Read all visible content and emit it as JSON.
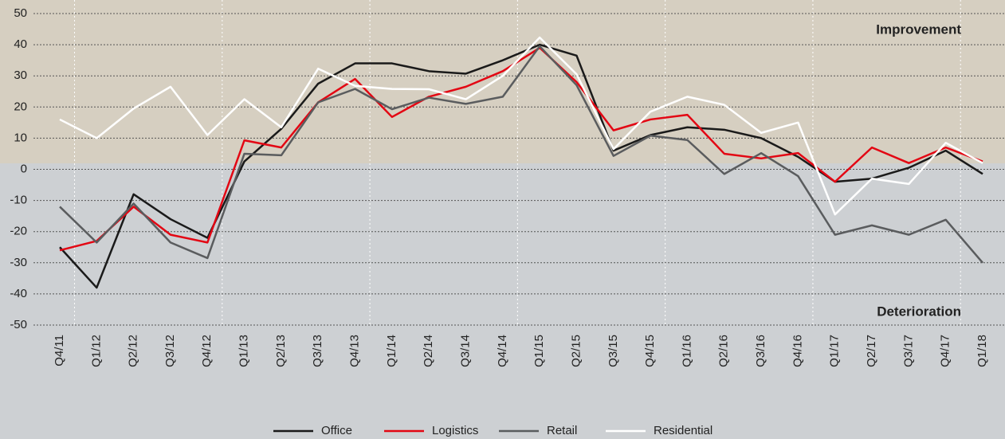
{
  "chart_data": {
    "type": "line",
    "categories": [
      "Q4/11",
      "Q1/12",
      "Q2/12",
      "Q3/12",
      "Q4/12",
      "Q1/13",
      "Q2/13",
      "Q3/13",
      "Q4/13",
      "Q1/14",
      "Q2/14",
      "Q3/14",
      "Q4/14",
      "Q1/15",
      "Q2/15",
      "Q3/15",
      "Q4/15",
      "Q1/16",
      "Q2/16",
      "Q3/16",
      "Q4/16",
      "Q1/17",
      "Q2/17",
      "Q3/17",
      "Q4/17",
      "Q1/18"
    ],
    "series": [
      {
        "name": "Office",
        "color": "#1a1a1a",
        "values": [
          -25,
          -38,
          -8,
          -16,
          -22,
          2.5,
          13,
          27.5,
          34,
          34,
          31.5,
          30.7,
          35,
          40,
          36.5,
          6,
          11,
          13.5,
          12.7,
          10,
          4,
          -4,
          -3,
          0.5,
          6,
          -1.5
        ]
      },
      {
        "name": "Logistics",
        "color": "#e30613",
        "values": [
          -26,
          -23,
          -12,
          -21,
          -23.5,
          9.3,
          7,
          21.5,
          29,
          16.8,
          23.3,
          26.5,
          31.5,
          39,
          28,
          12.5,
          16,
          17.5,
          5,
          3.5,
          5.2,
          -4,
          7,
          2,
          7,
          2.5
        ]
      },
      {
        "name": "Retail",
        "color": "#5a5c5e",
        "values": [
          -12,
          -23.5,
          -11,
          -23.5,
          -28.5,
          5,
          4.5,
          21.5,
          25.8,
          19.3,
          23,
          21,
          23.3,
          39.5,
          27,
          4.3,
          10.8,
          9.4,
          -1.5,
          5.2,
          -2.2,
          -21,
          -18,
          -21,
          -16.2,
          -30
        ]
      },
      {
        "name": "Residential",
        "color": "#ffffff",
        "values": [
          16,
          10,
          19.5,
          26.5,
          11,
          22.5,
          13.5,
          32.3,
          26.8,
          25.8,
          25.7,
          22.5,
          30,
          42.3,
          30.5,
          6.5,
          18.5,
          23.3,
          20.7,
          11.7,
          15,
          -14.5,
          -3,
          -4.7,
          8.5,
          2
        ]
      }
    ],
    "ylim": [
      -50,
      50
    ],
    "yticks": [
      50,
      40,
      30,
      20,
      10,
      0,
      -10,
      -20,
      -30,
      -40,
      -50
    ],
    "grid": true,
    "annotations": [
      "Improvement",
      "Deterioration"
    ]
  }
}
